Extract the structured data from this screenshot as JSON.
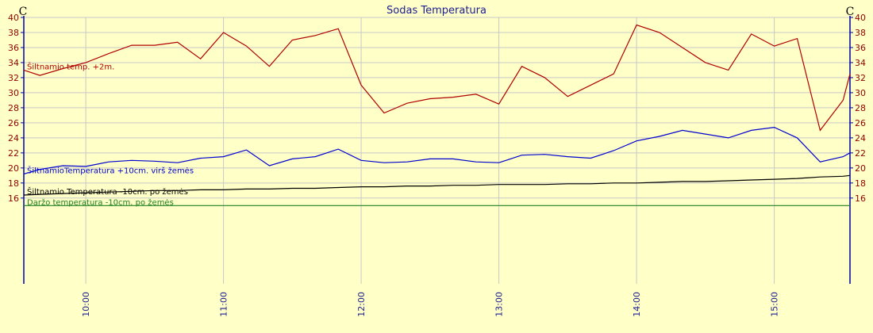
{
  "chart_data": {
    "type": "line",
    "title": "Sodas Temperatura",
    "y_label": "C",
    "y2_label": "C",
    "x": [
      573,
      580,
      590,
      600,
      610,
      620,
      630,
      640,
      650,
      660,
      670,
      680,
      690,
      700,
      710,
      720,
      730,
      740,
      750,
      760,
      770,
      780,
      790,
      800,
      810,
      820,
      830,
      840,
      850,
      860,
      870,
      880,
      890,
      900,
      910,
      920,
      930,
      933
    ],
    "xlim": [
      573,
      933
    ],
    "xticks": [
      {
        "value": 600,
        "label": "10:00"
      },
      {
        "value": 660,
        "label": "11:00"
      },
      {
        "value": 720,
        "label": "12:00"
      },
      {
        "value": 780,
        "label": "13:00"
      },
      {
        "value": 840,
        "label": "14:00"
      },
      {
        "value": 900,
        "label": "15:00"
      }
    ],
    "ylim": [
      4.6,
      40
    ],
    "yticks": [
      16,
      18,
      20,
      22,
      24,
      26,
      28,
      30,
      32,
      34,
      36,
      38,
      40
    ],
    "y2lim": [
      4.6,
      40
    ],
    "y2ticks": [
      16,
      18,
      20,
      22,
      24,
      26,
      28,
      30,
      32,
      34,
      36,
      38,
      40
    ],
    "grid": true,
    "series": [
      {
        "name": "Šiltnamio temp. +2m.",
        "color": "#b00000",
        "values": [
          33,
          32.3,
          33.2,
          34,
          35.2,
          36.3,
          36.3,
          36.7,
          34.5,
          38,
          36.2,
          33.5,
          37,
          37.6,
          38.5,
          31,
          27.3,
          28.6,
          29.2,
          29.4,
          29.8,
          28.5,
          33.5,
          32,
          29.5,
          31,
          32.5,
          39,
          38,
          36,
          34,
          33,
          37.8,
          36.2,
          37.2,
          25,
          29,
          32.5
        ]
      },
      {
        "name": "ŠiltnamioTemperatura +10cm. virš žemės",
        "color": "#0000d0",
        "values": [
          19.2,
          19.8,
          20.3,
          20.2,
          20.8,
          21,
          20.9,
          20.7,
          21.3,
          21.5,
          22.4,
          20.3,
          21.2,
          21.5,
          22.5,
          21,
          20.7,
          20.8,
          21.2,
          21.2,
          20.8,
          20.7,
          21.7,
          21.8,
          21.5,
          21.3,
          22.3,
          23.6,
          24.2,
          25,
          24.5,
          24,
          25,
          25.4,
          24,
          20.8,
          21.5,
          22
        ]
      },
      {
        "name": "Šiltnamio Temperatura -10cm. po žemės",
        "color": "#000000",
        "values": [
          16.4,
          16.5,
          16.6,
          16.7,
          16.8,
          16.9,
          17,
          17,
          17.1,
          17.1,
          17.2,
          17.2,
          17.3,
          17.3,
          17.4,
          17.5,
          17.5,
          17.6,
          17.6,
          17.7,
          17.7,
          17.8,
          17.8,
          17.8,
          17.9,
          17.9,
          18,
          18,
          18.1,
          18.2,
          18.2,
          18.3,
          18.4,
          18.5,
          18.6,
          18.8,
          18.9,
          19
        ]
      },
      {
        "name": "Daržo temperatura -10cm. po žemės",
        "color": "#208020",
        "values": [
          15,
          15,
          15,
          15,
          15,
          15,
          15,
          15,
          15,
          15,
          15,
          15,
          15,
          15,
          15,
          15,
          15,
          15,
          15,
          15,
          15,
          15,
          15,
          15,
          15,
          15,
          15,
          15,
          15,
          15,
          15,
          15,
          15,
          15,
          15,
          15,
          15,
          15
        ]
      }
    ]
  }
}
